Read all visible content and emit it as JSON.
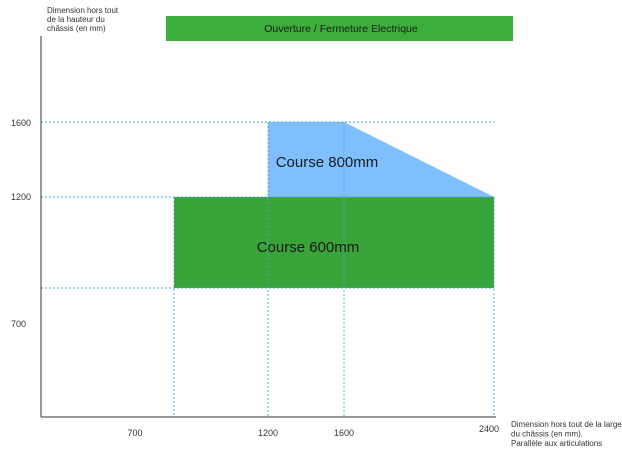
{
  "banner": {
    "label": "Ouverture / Fermeture Electrique",
    "color": "#3cae3c"
  },
  "y_axis": {
    "title_lines": [
      "Dimension hors tout",
      "de la hauteur du",
      "châssis (en mm)"
    ],
    "ticks": [
      "1600",
      "1200",
      "700"
    ]
  },
  "x_axis": {
    "title_lines": [
      "Dimension hors tout de la largeur",
      "du châssis (en mm).",
      "Parallèle aux articulations"
    ],
    "ticks": [
      "700",
      "1200",
      "1600",
      "2400"
    ]
  },
  "regions": {
    "course_800": {
      "label": "Course 800mm",
      "color": "#7fbfff"
    },
    "course_600": {
      "label": "Course 600mm",
      "color": "#3aa33a"
    }
  },
  "colors": {
    "gridline": "#4aa8d8",
    "axis": "#333333"
  }
}
